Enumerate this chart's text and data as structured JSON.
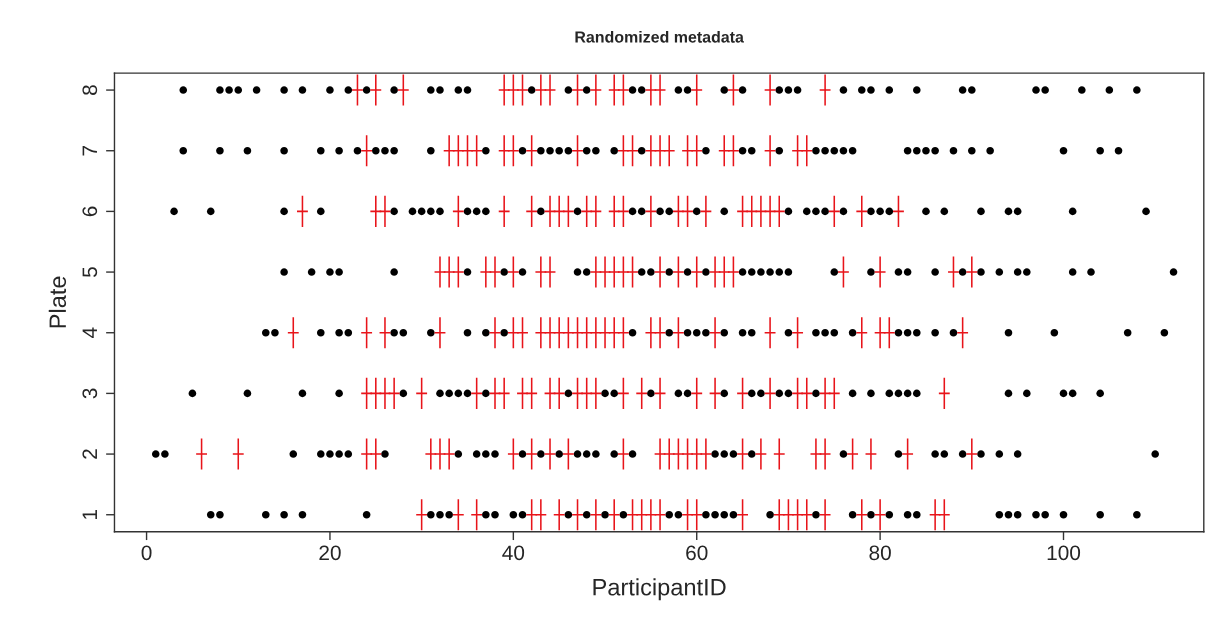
{
  "chart_data": {
    "type": "scatter",
    "title": "Randomized metadata",
    "xlabel": "ParticipantID",
    "ylabel": "Plate",
    "xlim": [
      -3.5,
      115.3
    ],
    "xticks": [
      0,
      20,
      40,
      60,
      80,
      100
    ],
    "ylim": [
      0.72,
      8.28
    ],
    "yticks": [
      1,
      2,
      3,
      4,
      5,
      6,
      7,
      8
    ],
    "grid": false,
    "series": [
      {
        "color": "#000000",
        "marker": "circle",
        "x": [
          4,
          8,
          9,
          10,
          12,
          15,
          17,
          20,
          22,
          24,
          27,
          31,
          32,
          34,
          35,
          42,
          46,
          48,
          53,
          54,
          58,
          59,
          63,
          65,
          69,
          70,
          71,
          76,
          78,
          79,
          81,
          84,
          89,
          90,
          97,
          98,
          102,
          105,
          108
        ],
        "values": [
          8,
          8,
          8,
          8,
          8,
          8,
          8,
          8,
          8,
          8,
          8,
          8,
          8,
          8,
          8,
          8,
          8,
          8,
          8,
          8,
          8,
          8,
          8,
          8,
          8,
          8,
          8,
          8,
          8,
          8,
          8,
          8,
          8,
          8,
          8,
          8,
          8,
          8,
          8
        ]
      },
      {
        "color": "#e8141a",
        "marker": "cross",
        "x": [
          23,
          25,
          28,
          39,
          40,
          41,
          43,
          44,
          47,
          49,
          51,
          52,
          55,
          56,
          60,
          64,
          68,
          74
        ],
        "values": [
          8,
          8,
          8,
          8,
          8,
          8,
          8,
          8,
          8,
          8,
          8,
          8,
          8,
          8,
          8,
          8,
          8,
          8
        ]
      },
      {
        "color": "#000000",
        "marker": "circle",
        "x": [
          4,
          8,
          11,
          15,
          19,
          21,
          23,
          25,
          26,
          27,
          31,
          37,
          41,
          43,
          44,
          45,
          46,
          48,
          49,
          51,
          54,
          61,
          65,
          66,
          69,
          73,
          74,
          75,
          76,
          77,
          83,
          84,
          85,
          86,
          88,
          90,
          92,
          100,
          104,
          106
        ],
        "values": [
          7,
          7,
          7,
          7,
          7,
          7,
          7,
          7,
          7,
          7,
          7,
          7,
          7,
          7,
          7,
          7,
          7,
          7,
          7,
          7,
          7,
          7,
          7,
          7,
          7,
          7,
          7,
          7,
          7,
          7,
          7,
          7,
          7,
          7,
          7,
          7,
          7,
          7,
          7,
          7
        ]
      },
      {
        "color": "#e8141a",
        "marker": "cross",
        "x": [
          24,
          33,
          34,
          35,
          36,
          39,
          40,
          42,
          47,
          52,
          53,
          55,
          56,
          57,
          59,
          60,
          63,
          64,
          68,
          71,
          72
        ],
        "values": [
          7,
          7,
          7,
          7,
          7,
          7,
          7,
          7,
          7,
          7,
          7,
          7,
          7,
          7,
          7,
          7,
          7,
          7,
          7,
          7,
          7
        ]
      },
      {
        "color": "#000000",
        "marker": "circle",
        "x": [
          3,
          7,
          15,
          19,
          27,
          29,
          30,
          31,
          32,
          35,
          36,
          37,
          43,
          47,
          53,
          54,
          56,
          57,
          60,
          63,
          70,
          72,
          73,
          74,
          76,
          79,
          80,
          81,
          85,
          87,
          91,
          94,
          95,
          101,
          109
        ],
        "values": [
          6,
          6,
          6,
          6,
          6,
          6,
          6,
          6,
          6,
          6,
          6,
          6,
          6,
          6,
          6,
          6,
          6,
          6,
          6,
          6,
          6,
          6,
          6,
          6,
          6,
          6,
          6,
          6,
          6,
          6,
          6,
          6,
          6,
          6,
          6
        ]
      },
      {
        "color": "#e8141a",
        "marker": "cross",
        "x": [
          17,
          25,
          26,
          34,
          39,
          42,
          44,
          45,
          46,
          48,
          49,
          51,
          52,
          55,
          58,
          59,
          61,
          65,
          66,
          67,
          68,
          69,
          75,
          78,
          82
        ],
        "values": [
          6,
          6,
          6,
          6,
          6,
          6,
          6,
          6,
          6,
          6,
          6,
          6,
          6,
          6,
          6,
          6,
          6,
          6,
          6,
          6,
          6,
          6,
          6,
          6,
          6
        ]
      },
      {
        "color": "#000000",
        "marker": "circle",
        "x": [
          15,
          18,
          20,
          21,
          27,
          35,
          39,
          41,
          47,
          48,
          54,
          55,
          57,
          59,
          61,
          65,
          66,
          67,
          68,
          69,
          70,
          75,
          79,
          82,
          83,
          86,
          89,
          91,
          93,
          95,
          96,
          101,
          103,
          112
        ],
        "values": [
          5,
          5,
          5,
          5,
          5,
          5,
          5,
          5,
          5,
          5,
          5,
          5,
          5,
          5,
          5,
          5,
          5,
          5,
          5,
          5,
          5,
          5,
          5,
          5,
          5,
          5,
          5,
          5,
          5,
          5,
          5,
          5,
          5,
          5
        ]
      },
      {
        "color": "#e8141a",
        "marker": "cross",
        "x": [
          32,
          33,
          34,
          37,
          38,
          40,
          43,
          44,
          49,
          50,
          51,
          52,
          53,
          56,
          58,
          60,
          62,
          63,
          64,
          76,
          80,
          88,
          90
        ],
        "values": [
          5,
          5,
          5,
          5,
          5,
          5,
          5,
          5,
          5,
          5,
          5,
          5,
          5,
          5,
          5,
          5,
          5,
          5,
          5,
          5,
          5,
          5,
          5
        ]
      },
      {
        "color": "#000000",
        "marker": "circle",
        "x": [
          13,
          14,
          19,
          21,
          22,
          27,
          28,
          31,
          35,
          37,
          39,
          53,
          57,
          59,
          60,
          61,
          63,
          65,
          66,
          70,
          73,
          74,
          75,
          77,
          82,
          83,
          84,
          86,
          88,
          94,
          99,
          107,
          111
        ],
        "values": [
          4,
          4,
          4,
          4,
          4,
          4,
          4,
          4,
          4,
          4,
          4,
          4,
          4,
          4,
          4,
          4,
          4,
          4,
          4,
          4,
          4,
          4,
          4,
          4,
          4,
          4,
          4,
          4,
          4,
          4,
          4,
          4,
          4
        ]
      },
      {
        "color": "#e8141a",
        "marker": "cross",
        "x": [
          16,
          24,
          26,
          32,
          38,
          40,
          41,
          43,
          44,
          45,
          46,
          47,
          48,
          49,
          50,
          51,
          52,
          55,
          56,
          58,
          62,
          68,
          71,
          78,
          80,
          81,
          89
        ],
        "values": [
          4,
          4,
          4,
          4,
          4,
          4,
          4,
          4,
          4,
          4,
          4,
          4,
          4,
          4,
          4,
          4,
          4,
          4,
          4,
          4,
          4,
          4,
          4,
          4,
          4,
          4,
          4
        ]
      },
      {
        "color": "#000000",
        "marker": "circle",
        "x": [
          5,
          11,
          17,
          21,
          28,
          32,
          33,
          34,
          35,
          37,
          46,
          50,
          51,
          55,
          58,
          59,
          63,
          66,
          67,
          69,
          70,
          73,
          77,
          79,
          81,
          82,
          83,
          84,
          94,
          96,
          100,
          101,
          104
        ],
        "values": [
          3,
          3,
          3,
          3,
          3,
          3,
          3,
          3,
          3,
          3,
          3,
          3,
          3,
          3,
          3,
          3,
          3,
          3,
          3,
          3,
          3,
          3,
          3,
          3,
          3,
          3,
          3,
          3,
          3,
          3,
          3,
          3,
          3
        ]
      },
      {
        "color": "#e8141a",
        "marker": "cross",
        "x": [
          24,
          25,
          26,
          27,
          30,
          36,
          38,
          39,
          41,
          42,
          44,
          45,
          47,
          48,
          49,
          52,
          54,
          56,
          60,
          62,
          65,
          68,
          71,
          72,
          74,
          75,
          87
        ],
        "values": [
          3,
          3,
          3,
          3,
          3,
          3,
          3,
          3,
          3,
          3,
          3,
          3,
          3,
          3,
          3,
          3,
          3,
          3,
          3,
          3,
          3,
          3,
          3,
          3,
          3,
          3,
          3
        ]
      },
      {
        "color": "#000000",
        "marker": "circle",
        "x": [
          1,
          2,
          16,
          19,
          20,
          21,
          22,
          26,
          34,
          36,
          37,
          38,
          41,
          43,
          45,
          47,
          48,
          49,
          51,
          53,
          62,
          63,
          64,
          66,
          76,
          82,
          86,
          87,
          89,
          91,
          93,
          95,
          110
        ],
        "values": [
          2,
          2,
          2,
          2,
          2,
          2,
          2,
          2,
          2,
          2,
          2,
          2,
          2,
          2,
          2,
          2,
          2,
          2,
          2,
          2,
          2,
          2,
          2,
          2,
          2,
          2,
          2,
          2,
          2,
          2,
          2,
          2,
          2
        ]
      },
      {
        "color": "#e8141a",
        "marker": "cross",
        "x": [
          6,
          10,
          24,
          25,
          31,
          32,
          33,
          40,
          42,
          44,
          46,
          52,
          56,
          57,
          58,
          59,
          60,
          61,
          65,
          67,
          69,
          73,
          74,
          77,
          79,
          83,
          90
        ],
        "values": [
          2,
          2,
          2,
          2,
          2,
          2,
          2,
          2,
          2,
          2,
          2,
          2,
          2,
          2,
          2,
          2,
          2,
          2,
          2,
          2,
          2,
          2,
          2,
          2,
          2,
          2,
          2
        ]
      },
      {
        "color": "#000000",
        "marker": "circle",
        "x": [
          7,
          8,
          13,
          15,
          17,
          24,
          31,
          32,
          33,
          37,
          38,
          40,
          41,
          46,
          48,
          50,
          52,
          57,
          58,
          61,
          62,
          63,
          64,
          68,
          73,
          77,
          79,
          81,
          83,
          84,
          93,
          94,
          95,
          97,
          98,
          100,
          104,
          108
        ],
        "values": [
          1,
          1,
          1,
          1,
          1,
          1,
          1,
          1,
          1,
          1,
          1,
          1,
          1,
          1,
          1,
          1,
          1,
          1,
          1,
          1,
          1,
          1,
          1,
          1,
          1,
          1,
          1,
          1,
          1,
          1,
          1,
          1,
          1,
          1,
          1,
          1,
          1,
          1
        ]
      },
      {
        "color": "#e8141a",
        "marker": "cross",
        "x": [
          30,
          34,
          36,
          42,
          43,
          45,
          47,
          49,
          51,
          53,
          54,
          55,
          56,
          59,
          60,
          65,
          69,
          70,
          71,
          72,
          74,
          78,
          80,
          86,
          87
        ],
        "values": [
          1,
          1,
          1,
          1,
          1,
          1,
          1,
          1,
          1,
          1,
          1,
          1,
          1,
          1,
          1,
          1,
          1,
          1,
          1,
          1,
          1,
          1,
          1,
          1,
          1
        ]
      }
    ]
  }
}
